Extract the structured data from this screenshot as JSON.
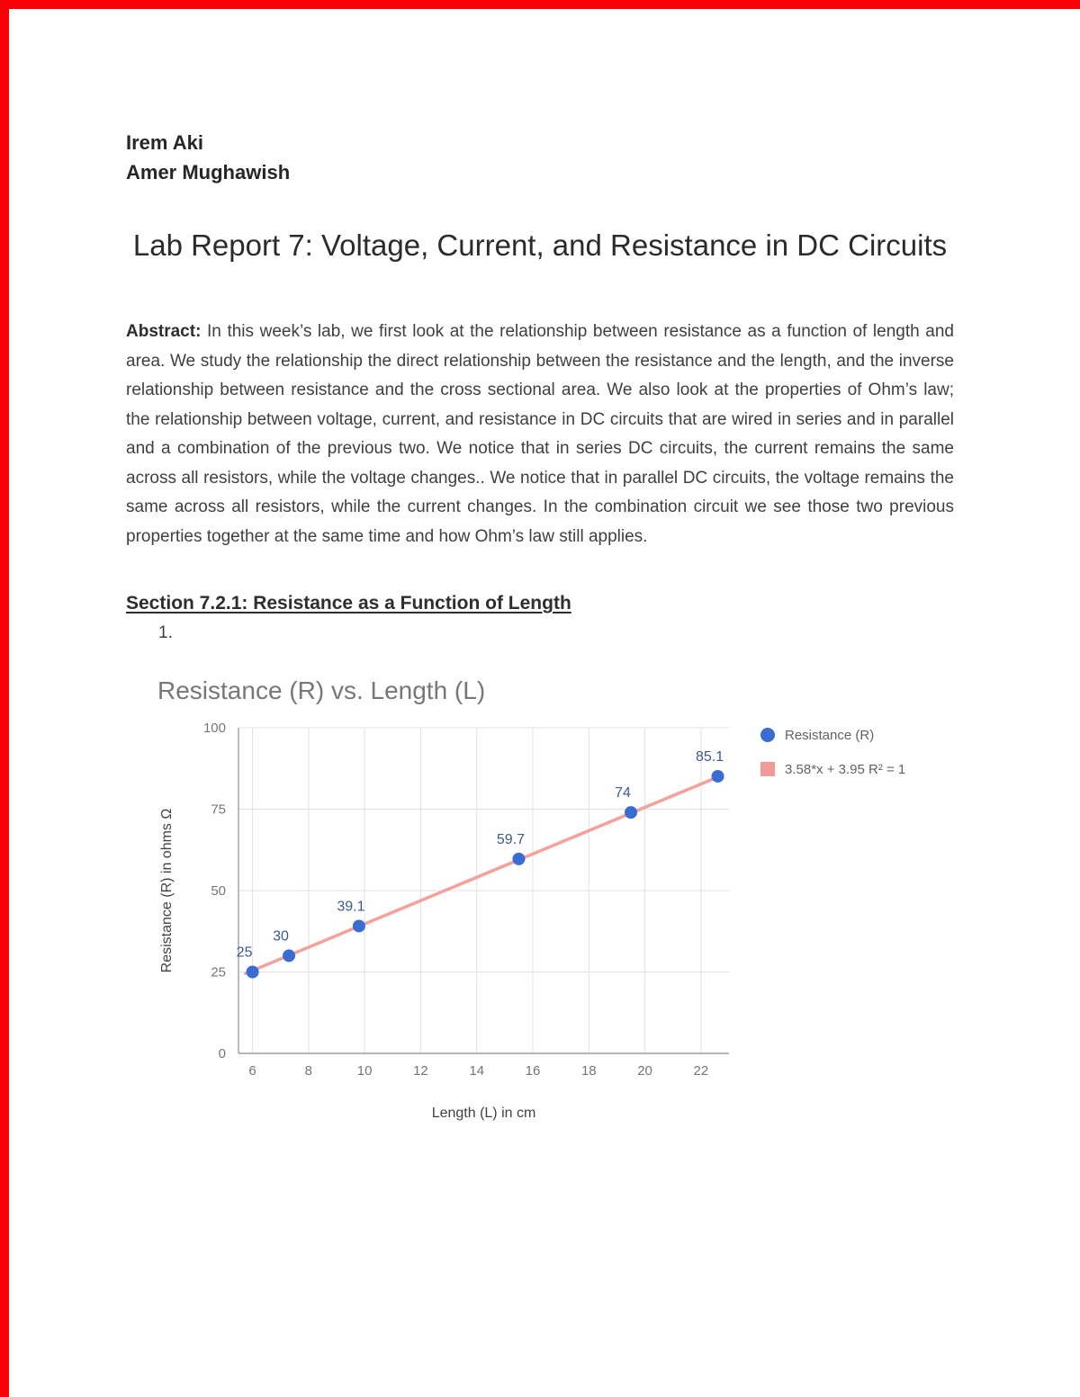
{
  "document": {
    "authors": [
      "Irem Aki",
      "Amer Mughawish"
    ],
    "title": "Lab Report 7: Voltage, Current, and Resistance in DC Circuits",
    "abstract_label": "Abstract:",
    "abstract_text": " In this week’s lab, we first look at the relationship between resistance as a function of length and area. We study the relationship the direct relationship between the resistance and the length, and the inverse relationship between resistance and the cross sectional area. We also look at the properties of Ohm’s law; the relationship between voltage, current, and resistance in DC circuits that are wired in series and in parallel and a combination of the previous two. We notice that in series DC circuits, the current remains the same across all resistors, while the voltage changes.. We notice that in parallel DC circuits, the voltage remains the same across all resistors, while the current changes. In the combination circuit we see those two previous properties together at the same time and how Ohm’s law still applies.",
    "section_heading": "Section 7.2.1: Resistance as a Function of Length",
    "list_number": "1.",
    "colors": {
      "edge": "#fa0007"
    }
  },
  "chart_data": {
    "type": "scatter",
    "title": "Resistance (R) vs. Length (L)",
    "xlabel": "Length (L) in cm",
    "ylabel": "Resistance (R) in ohms Ω",
    "x": [
      6,
      7.3,
      9.8,
      15.5,
      19.5,
      22.6
    ],
    "y": [
      25,
      30,
      39.1,
      59.7,
      74,
      85.1
    ],
    "point_labels": [
      "25",
      "30",
      "39.1",
      "59.7",
      "74",
      "85.1"
    ],
    "trendline": {
      "slope": 3.58,
      "intercept": 3.95,
      "x_start": 5.75,
      "x_end": 22.75
    },
    "legend": [
      {
        "label": "Resistance (R)",
        "marker": "circle",
        "color": "#3b6cd4"
      },
      {
        "label": "3.58*x + 3.95 R² = 1",
        "marker": "square",
        "color": "#f29b96"
      }
    ],
    "xlim": [
      5.5,
      23
    ],
    "ylim": [
      0,
      100
    ],
    "x_ticks": [
      6,
      8,
      10,
      12,
      14,
      16,
      18,
      20,
      22
    ],
    "y_ticks": [
      0,
      25,
      50,
      75,
      100
    ],
    "grid": true,
    "legend_position": "right",
    "colors": {
      "point": "#3b6cd4",
      "trend": "#f4a09b",
      "grid": "#e2e2e2",
      "axis": "#9e9e9e",
      "point_label": "#3c5a8f",
      "tick": "#757575",
      "legend_text": "#5f6368",
      "axis_title": "#424242",
      "title": "#777777"
    }
  }
}
